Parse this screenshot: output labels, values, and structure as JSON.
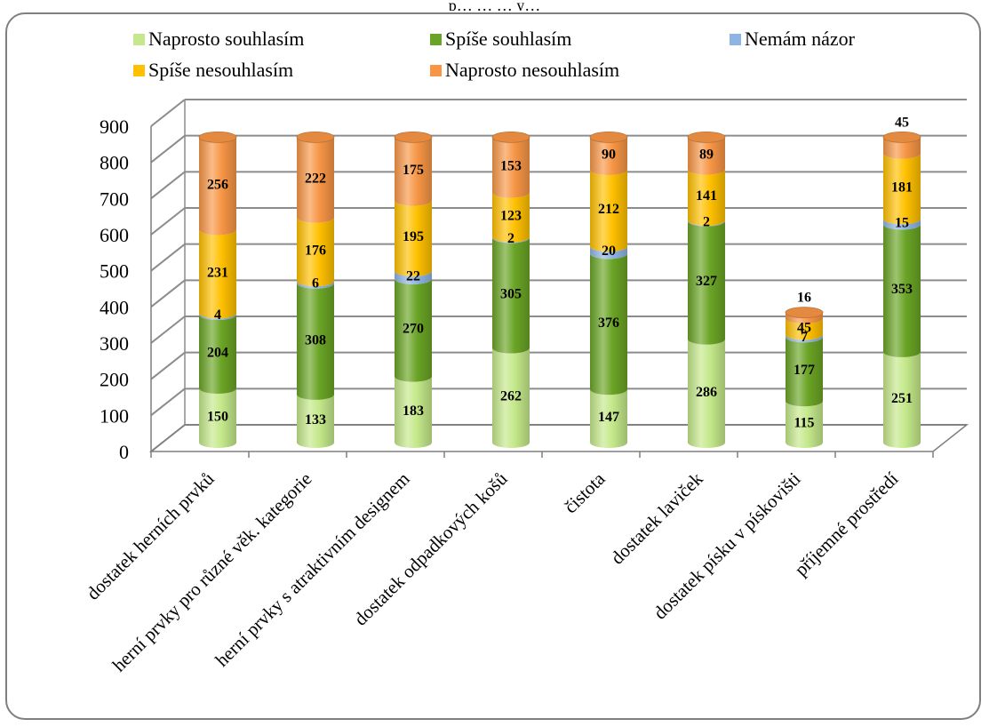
{
  "chart_data": {
    "type": "bar",
    "stacked": true,
    "style": "3d-cylinder",
    "title": "",
    "top_text": "p… … … y…",
    "xlabel": "",
    "ylabel": "",
    "ylim": [
      0,
      900
    ],
    "yticks": [
      "0",
      "100",
      "200",
      "300",
      "400",
      "500",
      "600",
      "700",
      "800",
      "900"
    ],
    "grid": true,
    "legend_position": "top",
    "categories": [
      "dostatek herních prvků",
      "herní prvky pro různé věk. kategorie",
      "herní prvky s atraktivním designem",
      "dostatek odpadkových košů",
      "čistota",
      "dostatek laviček",
      "dostatek písku v pískovišti",
      "příjemné prostředí"
    ],
    "series": [
      {
        "name": "Naprosto souhlasím",
        "color": "#c4e88a",
        "values": [
          150,
          133,
          183,
          262,
          147,
          286,
          115,
          251
        ]
      },
      {
        "name": "Spíše souhlasím",
        "color": "#6aa425",
        "values": [
          204,
          308,
          270,
          305,
          376,
          327,
          177,
          353
        ]
      },
      {
        "name": "Nemám názor",
        "color": "#8eb4e3",
        "values": [
          4,
          6,
          22,
          2,
          20,
          2,
          7,
          15
        ]
      },
      {
        "name": "Spíše nesouhlasím",
        "color": "#ffc000",
        "values": [
          231,
          176,
          195,
          123,
          212,
          141,
          45,
          181
        ]
      },
      {
        "name": "Naprosto nesouhlasím",
        "color": "#f79646",
        "values": [
          256,
          222,
          175,
          153,
          90,
          89,
          16,
          45
        ]
      }
    ]
  }
}
